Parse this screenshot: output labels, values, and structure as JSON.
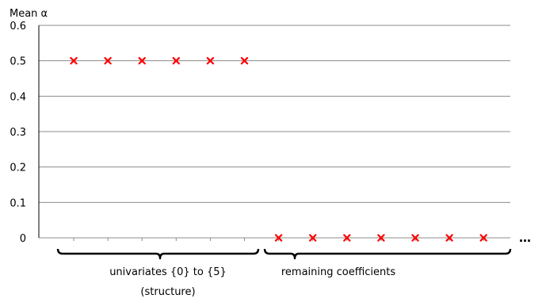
{
  "chart_data": {
    "type": "scatter",
    "title": "",
    "xlabel": "",
    "ylabel": "Mean α",
    "ylim": [
      0,
      0.6
    ],
    "yticks": [
      "0",
      "0.1",
      "0.2",
      "0.3",
      "0.4",
      "0.5",
      "0.6"
    ],
    "grid": true,
    "marker": "x",
    "marker_color": "#ff0000",
    "x": [
      1,
      2,
      3,
      4,
      5,
      6,
      7,
      8,
      9,
      10,
      11,
      12,
      13
    ],
    "y": [
      0.5,
      0.5,
      0.5,
      0.5,
      0.5,
      0.5,
      0,
      0,
      0,
      0,
      0,
      0,
      0
    ],
    "continuation_marker": "…",
    "groups": [
      {
        "label_lines": [
          "univariates {0} to {5}",
          "(structure)"
        ],
        "from": 1,
        "to": 6
      },
      {
        "label_lines": [
          "remaining coefficients"
        ],
        "from": 7,
        "to": 13
      }
    ]
  }
}
